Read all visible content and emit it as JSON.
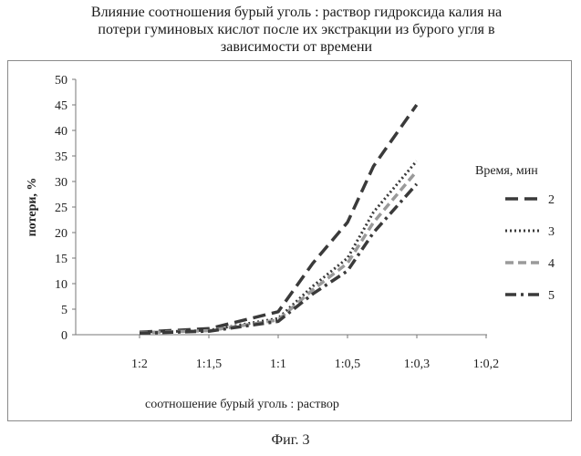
{
  "figure_caption": "Фиг. 3",
  "chart_data": {
    "type": "line",
    "title_lines": [
      "Влияние соотношения бурый уголь : раствор гидроксида калия  на",
      "потери гуминовых кислот после их экстракции из бурого угля в",
      "зависимости от времени"
    ],
    "xlabel": "соотношение бурый уголь : раствор",
    "ylabel": "потери, %",
    "categories": [
      "1:2",
      "1:1,5",
      "1:1",
      "1:0,5",
      "1:0,3",
      "1:0,2"
    ],
    "x_axis_note": "x is the ratio value (1/n); tick labels show ratios",
    "x": [
      0.5,
      0.67,
      1.0,
      1.5,
      2.0,
      2.5,
      3.33
    ],
    "ylim": [
      0,
      50
    ],
    "yticks": [
      0,
      5,
      10,
      15,
      20,
      25,
      30,
      35,
      40,
      45,
      50
    ],
    "legend_title": "Время, мин",
    "legend_position": "right",
    "grid": false,
    "series": [
      {
        "name": "2",
        "values": [
          0.5,
          1.2,
          4.5,
          14,
          22,
          33,
          45
        ],
        "color": "#3a3a3a",
        "dash": "long-dash"
      },
      {
        "name": "3",
        "values": [
          0.4,
          0.9,
          3.2,
          9.5,
          15,
          24,
          34
        ],
        "color": "#3a3a3a",
        "dash": "dotted"
      },
      {
        "name": "4",
        "values": [
          0.4,
          0.8,
          2.9,
          8.8,
          14,
          22,
          32
        ],
        "color": "#9a9a9a",
        "dash": "dash"
      },
      {
        "name": "5",
        "values": [
          0.3,
          0.7,
          2.6,
          8,
          12.5,
          20,
          29.5
        ],
        "color": "#3a3a3a",
        "dash": "dash-dot"
      }
    ]
  }
}
